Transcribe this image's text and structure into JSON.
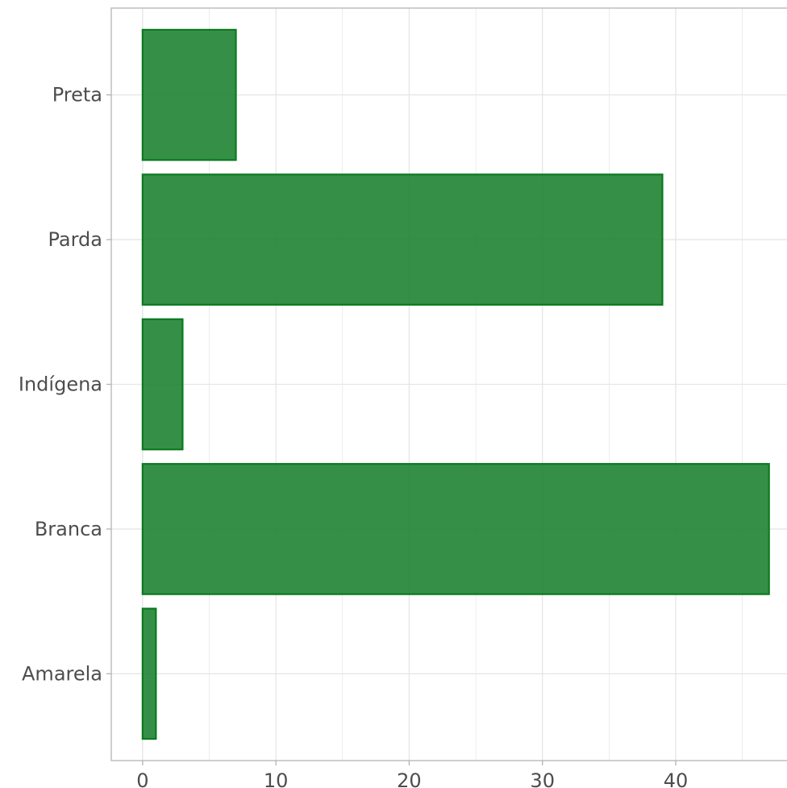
{
  "chart_data": {
    "type": "bar",
    "orientation": "horizontal",
    "categories": [
      "Amarela",
      "Branca",
      "Indígena",
      "Parda",
      "Preta"
    ],
    "values": [
      1,
      47,
      3,
      39,
      7
    ],
    "title": "",
    "xlabel": "",
    "ylabel": "",
    "xlim": [
      -2.35,
      48.35
    ],
    "x_ticks": [
      0,
      10,
      20,
      30,
      40
    ],
    "x_tick_labels": [
      "0",
      "10",
      "20",
      "30",
      "40"
    ],
    "grid": true,
    "legend": "none",
    "bar_fill": "#1a7f2e",
    "bar_outline": "#0a7a1f",
    "bar_opacity": 0.88,
    "grid_color": "#e5e5e5",
    "axis_color": "#b3b3b3",
    "text_color": "#4d4d4d"
  }
}
